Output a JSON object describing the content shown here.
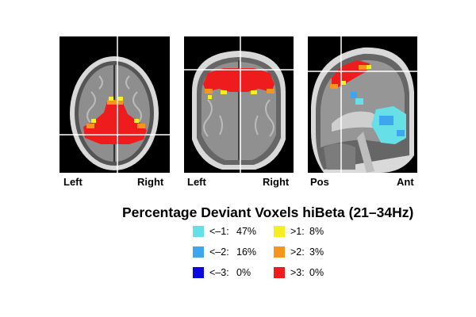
{
  "orientation_labels": {
    "axial_left": "Left",
    "axial_right": "Right",
    "coronal_left": "Left",
    "coronal_right": "Right",
    "sagittal_posterior": "Pos",
    "sagittal_anterior": "Ant"
  },
  "legend": {
    "title": "Percentage Deviant Voxels hiBeta (21–34Hz)",
    "items": [
      {
        "label": "<–1:",
        "value": "47%",
        "color": "#66e0e6"
      },
      {
        "label": "<–2:",
        "value": "16%",
        "color": "#3ea6ef"
      },
      {
        "label": "<–3:",
        "value": "0%",
        "color": "#0a0ae0"
      },
      {
        "label": ">1:",
        "value": "8%",
        "color": "#f4ee22"
      },
      {
        "label": ">2:",
        "value": "3%",
        "color": "#f6941e"
      },
      {
        "label": ">3:",
        "value": "0%",
        "color": "#ee1c1c"
      }
    ]
  },
  "colors": {
    "negative_1": "#66e0e6",
    "negative_2": "#3ea6ef",
    "positive_3": "#ee1c1c",
    "positive_2": "#f6941e",
    "positive_1": "#f4ee22"
  }
}
